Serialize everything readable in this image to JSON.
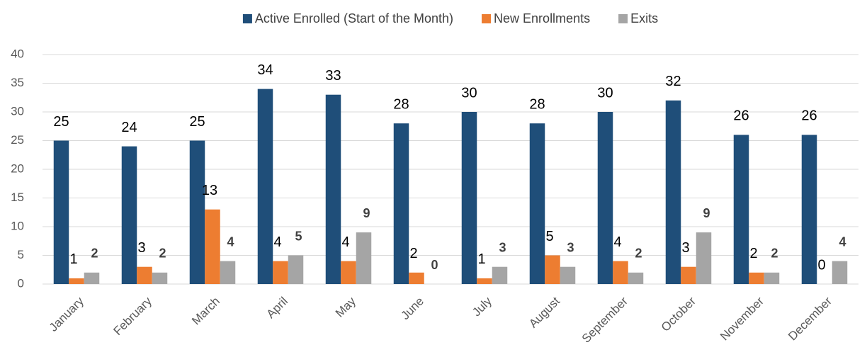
{
  "chart_data": {
    "type": "bar",
    "categories": [
      "January",
      "February",
      "March",
      "April",
      "May",
      "June",
      "July",
      "August",
      "September",
      "October",
      "November",
      "December"
    ],
    "series": [
      {
        "name": "Active Enrolled (Start of the Month)",
        "color": "#1f4e79",
        "values": [
          25,
          24,
          25,
          34,
          33,
          28,
          30,
          28,
          30,
          32,
          26,
          26
        ]
      },
      {
        "name": "New Enrollments",
        "color": "#ed7d31",
        "values": [
          1,
          3,
          13,
          4,
          4,
          2,
          1,
          5,
          4,
          3,
          2,
          0
        ]
      },
      {
        "name": "Exits",
        "color": "#a5a5a5",
        "values": [
          2,
          2,
          4,
          5,
          9,
          0,
          3,
          3,
          2,
          9,
          2,
          4
        ]
      }
    ],
    "ylim": [
      0,
      40
    ],
    "yticks": [
      0,
      5,
      10,
      15,
      20,
      25,
      30,
      35,
      40
    ],
    "grid": true,
    "legend": "top"
  }
}
